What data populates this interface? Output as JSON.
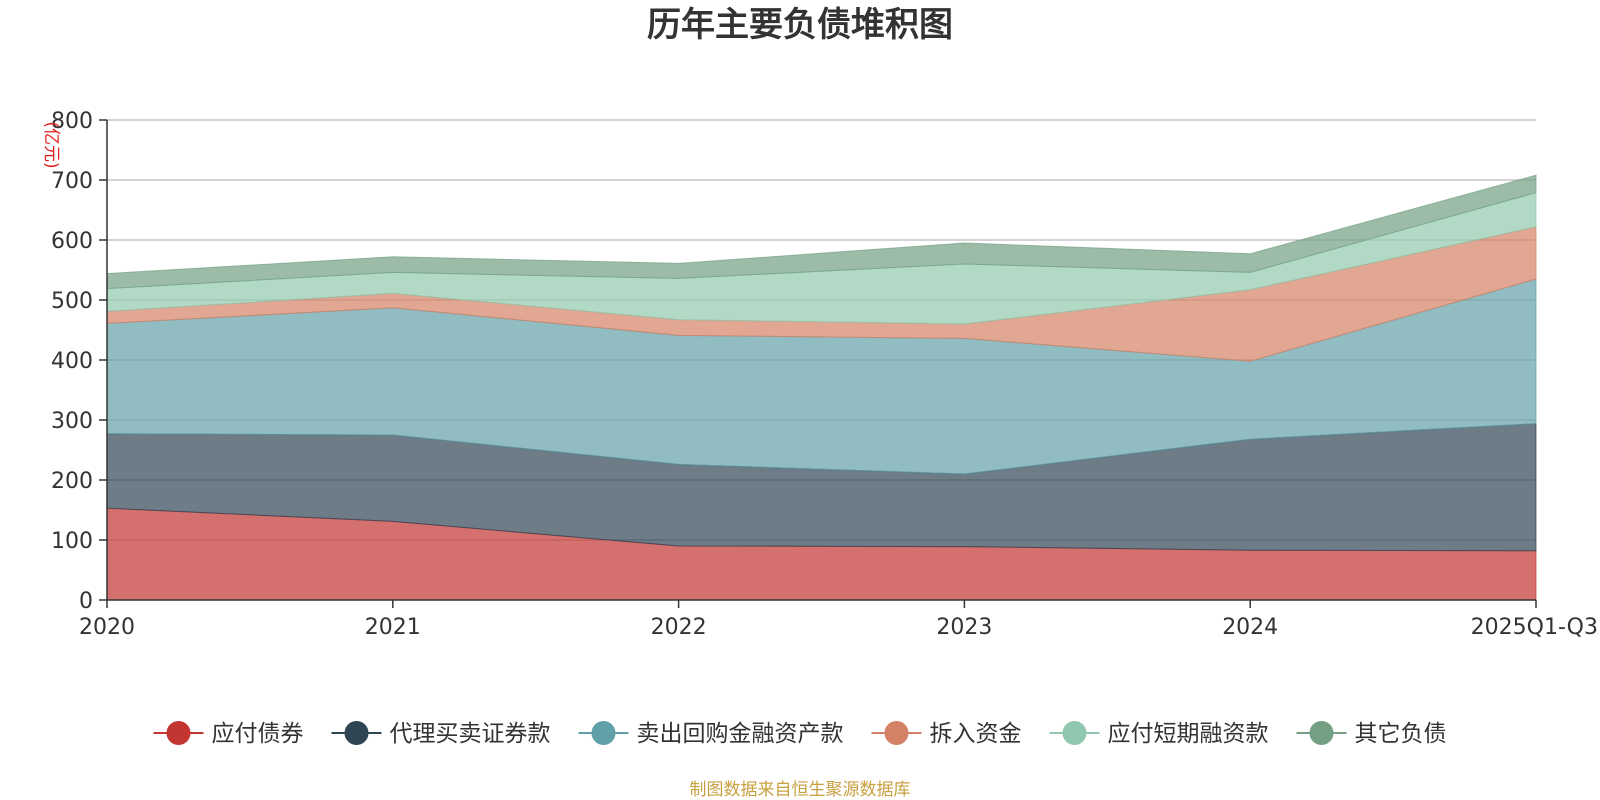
{
  "chart_data": {
    "type": "area",
    "stacked": true,
    "title": "历年主要负债堆积图",
    "ylabel": "(亿元)",
    "xlabel": "",
    "categories": [
      "2020",
      "2021",
      "2022",
      "2023",
      "2024",
      "2025Q1-Q3"
    ],
    "ylim": [
      0,
      800
    ],
    "yticks": [
      0,
      100,
      200,
      300,
      400,
      500,
      600,
      700,
      800
    ],
    "grid": true,
    "legend_position": "bottom",
    "series": [
      {
        "name": "应付债券",
        "color": "#c23531",
        "values": [
          153,
          131,
          90,
          89,
          83,
          82
        ]
      },
      {
        "name": "代理买卖证券款",
        "color": "#2f4554",
        "values": [
          124,
          144,
          136,
          121,
          185,
          212
        ]
      },
      {
        "name": "卖出回购金融资产款",
        "color": "#61a0a8",
        "values": [
          184,
          212,
          215,
          226,
          130,
          241
        ]
      },
      {
        "name": "拆入资金",
        "color": "#d48265",
        "values": [
          20,
          24,
          26,
          24,
          119,
          87
        ]
      },
      {
        "name": "应付短期融资款",
        "color": "#91c7ae",
        "values": [
          38,
          35,
          69,
          100,
          29,
          57
        ]
      },
      {
        "name": "其它负债",
        "color": "#749f83",
        "values": [
          25,
          26,
          25,
          35,
          31,
          29
        ]
      }
    ],
    "source": "制图数据来自恒生聚源数据库"
  }
}
